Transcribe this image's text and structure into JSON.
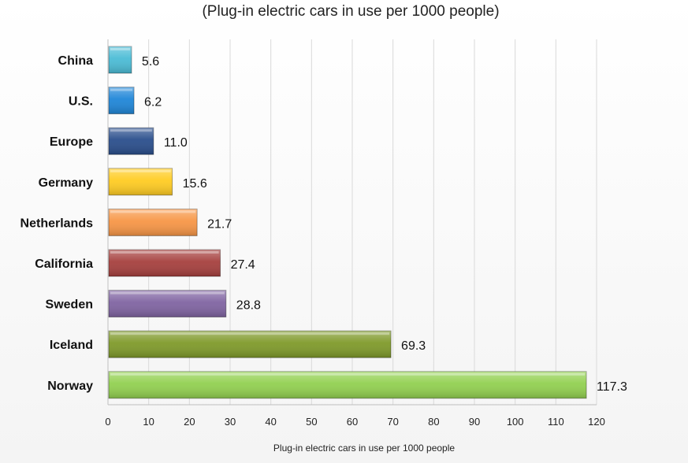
{
  "chart_data": {
    "type": "bar",
    "orientation": "horizontal",
    "title": "(Plug-in electric cars in use per 1000 people)",
    "xlabel": "Plug-in electric cars in use per 1000  people",
    "ylabel": "",
    "xlim": [
      0,
      120
    ],
    "ticks": [
      0,
      10,
      20,
      30,
      40,
      50,
      60,
      70,
      80,
      90,
      100,
      110,
      120
    ],
    "grid": true,
    "legend": "none",
    "categories": [
      "China",
      "U.S.",
      "Europe",
      "Germany",
      "Netherlands",
      "California",
      "Sweden",
      "Iceland",
      "Norway"
    ],
    "values": [
      5.6,
      6.2,
      11.0,
      15.6,
      21.7,
      27.4,
      28.8,
      69.3,
      117.3
    ],
    "value_labels": [
      "5.6",
      "6.2",
      "11.0",
      "15.6",
      "21.7",
      "27.4",
      "28.8",
      "69.3",
      "117.3"
    ],
    "colors": [
      "#4bbcd6",
      "#1f86d8",
      "#2a4e8c",
      "#ffcc22",
      "#f79646",
      "#a6403e",
      "#8064a2",
      "#7f9a2a",
      "#92d050"
    ]
  }
}
